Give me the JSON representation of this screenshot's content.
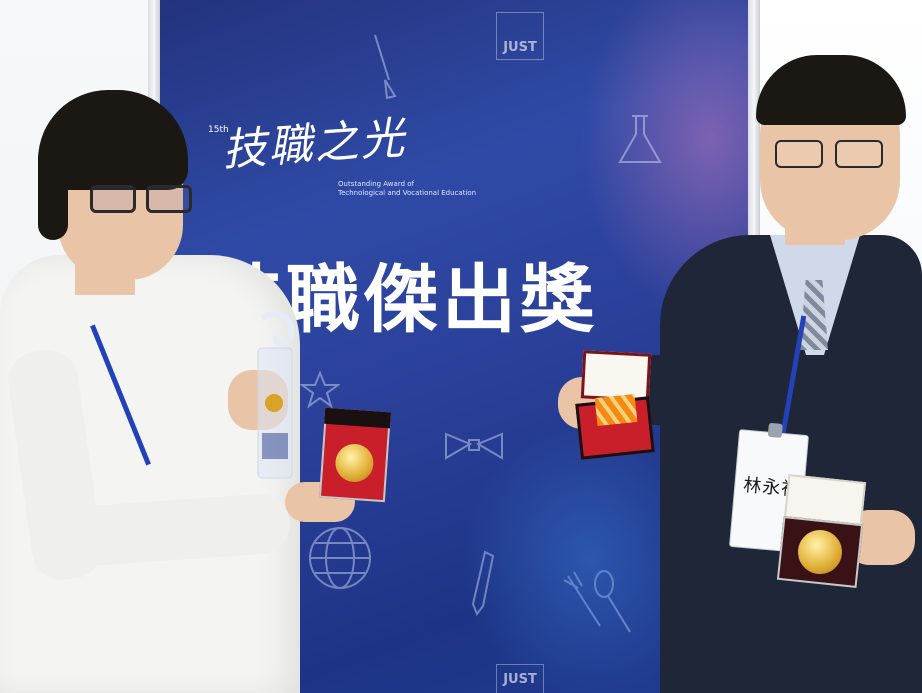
{
  "banner": {
    "logo_top": "JUST",
    "logo_bottom": "JUST",
    "edition": "15th",
    "brand_cn": "技職之光",
    "brand_en_line1": "Outstanding Award of",
    "brand_en_line2": "Technological and Vocational Education",
    "headline": "技職傑出獎",
    "background_color": "#2a3f98"
  },
  "badge": {
    "name": "林永禎"
  },
  "colors": {
    "wall": "#f3f5f7",
    "shirt_white": "#f4f4f2",
    "suit_navy": "#1e2638",
    "lanyard_blue": "#2341b8",
    "medal_gold": "#e2b23a",
    "box_red": "#c81f2a"
  }
}
